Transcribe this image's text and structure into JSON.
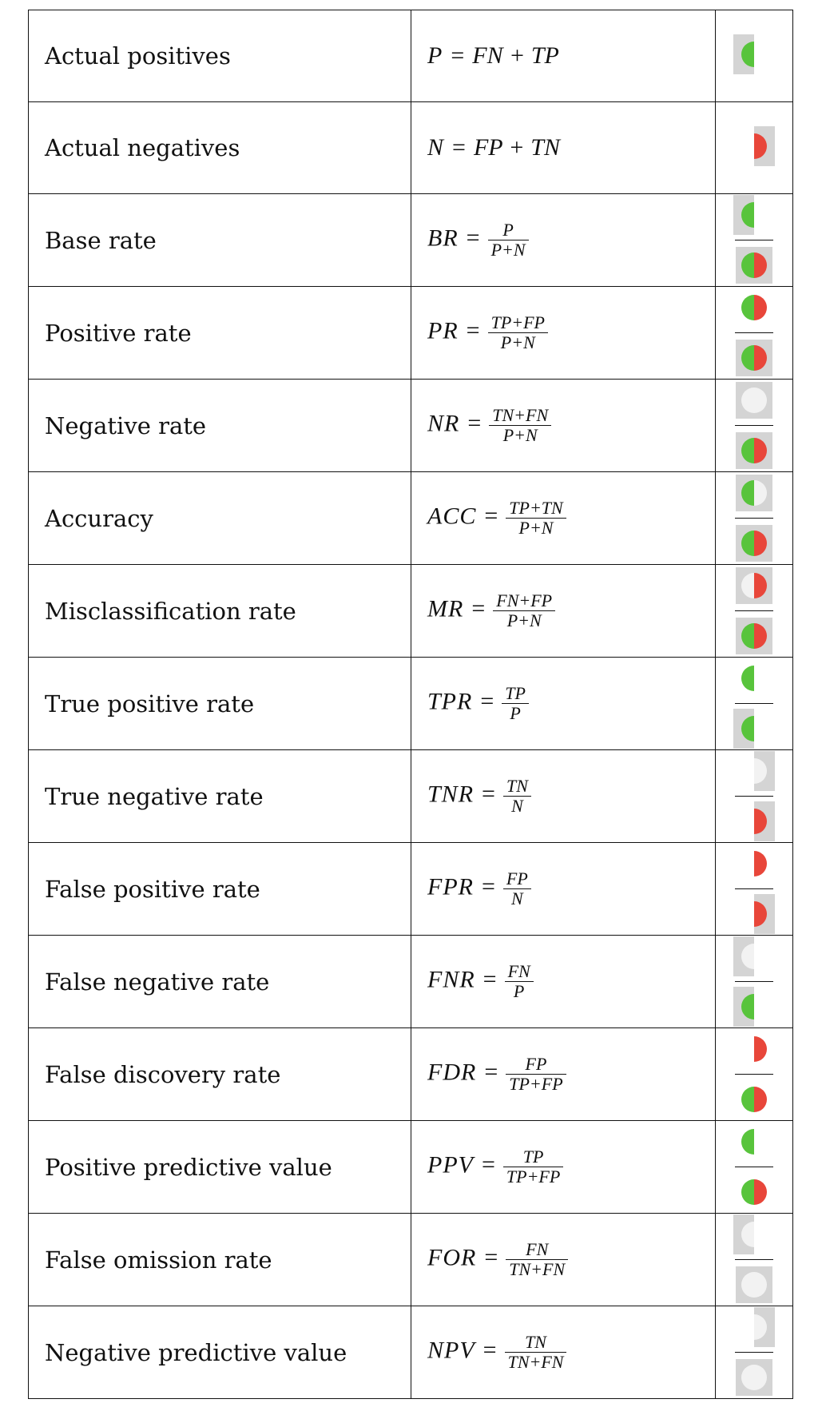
{
  "colors": {
    "positive": "#58c43c",
    "negative": "#e8463a",
    "square": "#d4d4d4",
    "empty": "#f2f2f2"
  },
  "rows": [
    {
      "name": "Actual positives",
      "formula": {
        "lhs": "P",
        "rhs": "FN + TP"
      },
      "viz": {
        "num": "P"
      }
    },
    {
      "name": "Actual negatives",
      "formula": {
        "lhs": "N",
        "rhs": "FP + TN"
      },
      "viz": {
        "num": "N"
      }
    },
    {
      "name": "Base rate",
      "formula": {
        "lhs": "BR",
        "num": "P",
        "den": "P+N"
      },
      "viz": {
        "num": "P",
        "den": "ALL"
      }
    },
    {
      "name": "Positive rate",
      "formula": {
        "lhs": "PR",
        "num": "TP+FP",
        "den": "P+N"
      },
      "viz": {
        "num": "PRED_POS",
        "den": "ALL"
      }
    },
    {
      "name": "Negative rate",
      "formula": {
        "lhs": "NR",
        "num": "TN+FN",
        "den": "P+N"
      },
      "viz": {
        "num": "PRED_NEG",
        "den": "ALL"
      }
    },
    {
      "name": "Accuracy",
      "formula": {
        "lhs": "ACC",
        "num": "TP+TN",
        "den": "P+N"
      },
      "viz": {
        "num": "CORRECT",
        "den": "ALL"
      }
    },
    {
      "name": "Misclassification rate",
      "formula": {
        "lhs": "MR",
        "num": "FN+FP",
        "den": "P+N"
      },
      "viz": {
        "num": "WRONG",
        "den": "ALL"
      }
    },
    {
      "name": "True positive rate",
      "formula": {
        "lhs": "TPR",
        "num": "TP",
        "den": "P"
      },
      "viz": {
        "num": "TP",
        "den": "P"
      }
    },
    {
      "name": "True negative rate",
      "formula": {
        "lhs": "TNR",
        "num": "TN",
        "den": "N"
      },
      "viz": {
        "num": "TN",
        "den": "N"
      }
    },
    {
      "name": "False positive rate",
      "formula": {
        "lhs": "FPR",
        "num": "FP",
        "den": "N"
      },
      "viz": {
        "num": "FP",
        "den": "N"
      }
    },
    {
      "name": "False negative rate",
      "formula": {
        "lhs": "FNR",
        "num": "FN",
        "den": "P"
      },
      "viz": {
        "num": "FN",
        "den": "P"
      }
    },
    {
      "name": "False discovery rate",
      "formula": {
        "lhs": "FDR",
        "num": "FP",
        "den": "TP+FP"
      },
      "viz": {
        "num": "FP",
        "den": "PRED_POS"
      }
    },
    {
      "name": "Positive predictive value",
      "formula": {
        "lhs": "PPV",
        "num": "TP",
        "den": "TP+FP"
      },
      "viz": {
        "num": "TP",
        "den": "PRED_POS"
      }
    },
    {
      "name": "False omission rate",
      "formula": {
        "lhs": "FOR",
        "num": "FN",
        "den": "TN+FN"
      },
      "viz": {
        "num": "FN",
        "den": "PRED_NEG"
      }
    },
    {
      "name": "Negative predictive value",
      "formula": {
        "lhs": "NPV",
        "num": "TN",
        "den": "TN+FN"
      },
      "viz": {
        "num": "TN",
        "den": "PRED_NEG"
      }
    }
  ]
}
